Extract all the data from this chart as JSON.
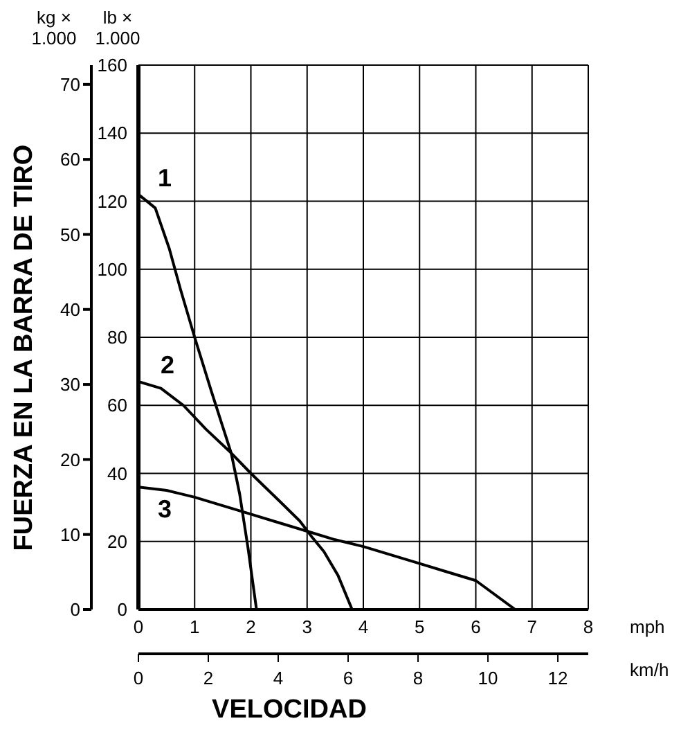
{
  "chart_data": {
    "type": "line",
    "xlabel": "mph",
    "x2label": "km/h",
    "ylabel": "lb × 1.000",
    "y2label": "kg × 1.000",
    "annotations": [
      "FUERZA EN LA BARRA DE TIRO",
      "VELOCIDAD"
    ],
    "xlim": [
      0,
      8
    ],
    "xticks": [
      0,
      1,
      2,
      3,
      4,
      5,
      6,
      7,
      8
    ],
    "x2lim": [
      0,
      12.87
    ],
    "x2ticks": [
      0,
      2,
      4,
      6,
      8,
      10,
      12
    ],
    "ylim": [
      0,
      160
    ],
    "yticks": [
      0,
      20,
      40,
      60,
      80,
      100,
      120,
      140,
      160
    ],
    "y2lim": [
      0,
      72.57
    ],
    "y2ticks": [
      0,
      10,
      20,
      30,
      40,
      50,
      60,
      70
    ],
    "grid": true,
    "legend": false,
    "marker": "none",
    "line_style": "solid",
    "series": [
      {
        "name": "1",
        "color": "#000000",
        "x": [
          0,
          0.3,
          0.55,
          0.75,
          1,
          1.3,
          1.65,
          1.8,
          1.95,
          2.1
        ],
        "values": [
          122,
          118,
          106,
          94,
          80,
          64,
          46,
          34,
          18,
          0
        ]
      },
      {
        "name": "2",
        "color": "#000000",
        "x": [
          0,
          0.4,
          0.8,
          1.2,
          1.65,
          2,
          2.5,
          2.87,
          3.1,
          3.3,
          3.55,
          3.8
        ],
        "values": [
          67,
          65,
          60,
          53,
          46,
          40,
          32,
          26,
          21,
          17,
          10,
          0
        ]
      },
      {
        "name": "3",
        "color": "#000000",
        "x": [
          0,
          0.5,
          1,
          1.5,
          2,
          2.5,
          3,
          3.5,
          4,
          4.5,
          5,
          5.5,
          6,
          6.7
        ],
        "values": [
          36,
          35,
          33,
          30.5,
          28,
          25.5,
          23,
          20.5,
          18.5,
          16,
          13.5,
          11,
          8.5,
          0
        ]
      }
    ]
  }
}
